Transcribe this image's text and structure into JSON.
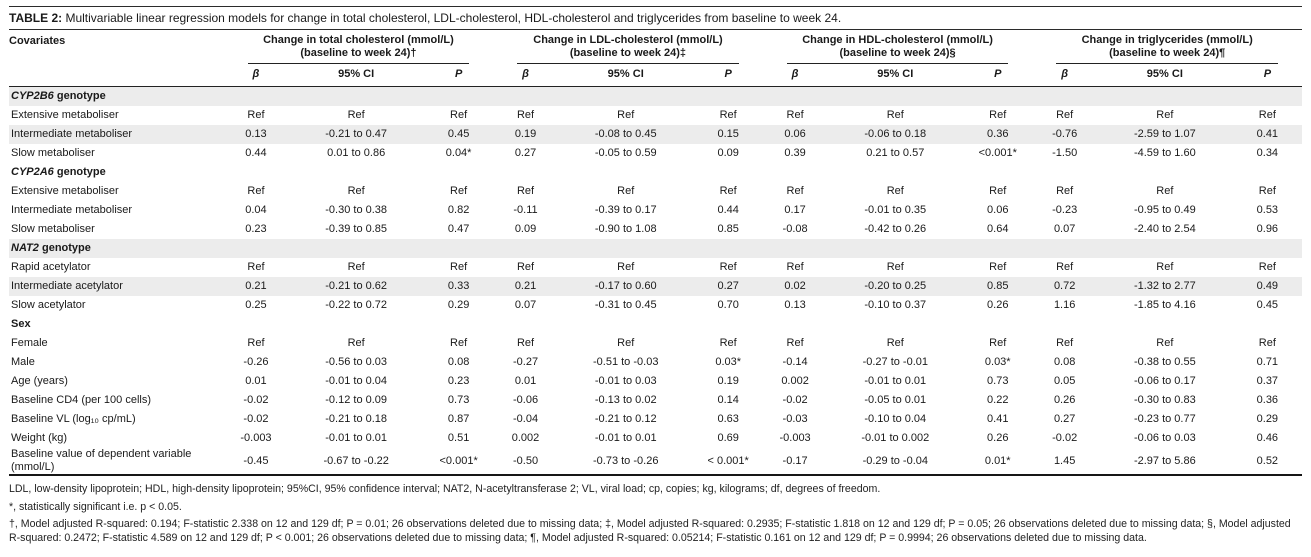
{
  "title": {
    "prefix": "TABLE 2:",
    "text": " Multivariable linear regression models for change in total cholesterol, LDL-cholesterol, HDL-cholesterol and triglycerides from baseline to week 24."
  },
  "colors": {
    "row_shade": "#ececec",
    "rule": "#222222",
    "text": "#1a1a1a"
  },
  "table": {
    "covariates_header": "Covariates",
    "groups": [
      {
        "line1": "Change in total cholesterol (mmol/L)",
        "line2": "(baseline to week 24)†"
      },
      {
        "line1": "Change in LDL-cholesterol (mmol/L)",
        "line2": "(baseline to week 24)‡"
      },
      {
        "line1": "Change in HDL-cholesterol (mmol/L)",
        "line2": "(baseline to week 24)§"
      },
      {
        "line1": "Change in triglycerides (mmol/L)",
        "line2": "(baseline to week 24)¶"
      }
    ],
    "subheaders": {
      "beta": "β",
      "ci": "95% CI",
      "p": "P"
    },
    "rows": [
      {
        "type": "section",
        "gene": "CYP2B6",
        "label": " genotype",
        "shaded": true
      },
      {
        "type": "data",
        "label": "Extensive metaboliser",
        "shaded": false,
        "values": [
          "Ref",
          "Ref",
          "Ref",
          "Ref",
          "Ref",
          "Ref",
          "Ref",
          "Ref",
          "Ref",
          "Ref",
          "Ref",
          "Ref"
        ]
      },
      {
        "type": "data",
        "label": "Intermediate metaboliser",
        "shaded": true,
        "values": [
          "0.13",
          "-0.21 to 0.47",
          "0.45",
          "0.19",
          "-0.08 to 0.45",
          "0.15",
          "0.06",
          "-0.06 to 0.18",
          "0.36",
          "-0.76",
          "-2.59 to 1.07",
          "0.41"
        ]
      },
      {
        "type": "data",
        "label": "Slow metaboliser",
        "shaded": false,
        "values": [
          "0.44",
          "0.01 to 0.86",
          "0.04*",
          "0.27",
          "-0.05 to 0.59",
          "0.09",
          "0.39",
          "0.21 to 0.57",
          "<0.001*",
          "-1.50",
          "-4.59 to 1.60",
          "0.34"
        ]
      },
      {
        "type": "section",
        "gene": "CYP2A6",
        "label": " genotype",
        "shaded": false
      },
      {
        "type": "data",
        "label": "Extensive metaboliser",
        "shaded": false,
        "values": [
          "Ref",
          "Ref",
          "Ref",
          "Ref",
          "Ref",
          "Ref",
          "Ref",
          "Ref",
          "Ref",
          "Ref",
          "Ref",
          "Ref"
        ]
      },
      {
        "type": "data",
        "label": "Intermediate metaboliser",
        "shaded": false,
        "values": [
          "0.04",
          "-0.30 to 0.38",
          "0.82",
          "-0.11",
          "-0.39 to 0.17",
          "0.44",
          "0.17",
          "-0.01 to 0.35",
          "0.06",
          "-0.23",
          "-0.95 to 0.49",
          "0.53"
        ]
      },
      {
        "type": "data",
        "label": "Slow metaboliser",
        "shaded": false,
        "values": [
          "0.23",
          "-0.39 to 0.85",
          "0.47",
          "0.09",
          "-0.90 to 1.08",
          "0.85",
          "-0.08",
          "-0.42 to 0.26",
          "0.64",
          "0.07",
          "-2.40 to 2.54",
          "0.96"
        ]
      },
      {
        "type": "section",
        "gene": "NAT2",
        "label": " genotype",
        "shaded": true
      },
      {
        "type": "data",
        "label": "Rapid acetylator",
        "shaded": false,
        "values": [
          "Ref",
          "Ref",
          "Ref",
          "Ref",
          "Ref",
          "Ref",
          "Ref",
          "Ref",
          "Ref",
          "Ref",
          "Ref",
          "Ref"
        ]
      },
      {
        "type": "data",
        "label": "Intermediate acetylator",
        "shaded": true,
        "values": [
          "0.21",
          "-0.21 to 0.62",
          "0.33",
          "0.21",
          "-0.17 to 0.60",
          "0.27",
          "0.02",
          "-0.20 to 0.25",
          "0.85",
          "0.72",
          "-1.32 to 2.77",
          "0.49"
        ]
      },
      {
        "type": "data",
        "label": "Slow acetylator",
        "shaded": false,
        "values": [
          "0.25",
          "-0.22 to 0.72",
          "0.29",
          "0.07",
          "-0.31 to 0.45",
          "0.70",
          "0.13",
          "-0.10 to 0.37",
          "0.26",
          "1.16",
          "-1.85 to 4.16",
          "0.45"
        ]
      },
      {
        "type": "section",
        "gene": "",
        "label": "Sex",
        "shaded": false
      },
      {
        "type": "data",
        "label": "Female",
        "shaded": false,
        "values": [
          "Ref",
          "Ref",
          "Ref",
          "Ref",
          "Ref",
          "Ref",
          "Ref",
          "Ref",
          "Ref",
          "Ref",
          "Ref",
          "Ref"
        ]
      },
      {
        "type": "data",
        "label": "Male",
        "shaded": false,
        "values": [
          "-0.26",
          "-0.56 to 0.03",
          "0.08",
          "-0.27",
          "-0.51 to -0.03",
          "0.03*",
          "-0.14",
          "-0.27 to -0.01",
          "0.03*",
          "0.08",
          "-0.38 to 0.55",
          "0.71"
        ]
      },
      {
        "type": "data",
        "label": "Age (years)",
        "shaded": false,
        "values": [
          "0.01",
          "-0.01 to 0.04",
          "0.23",
          "0.01",
          "-0.01 to 0.03",
          "0.19",
          "0.002",
          "-0.01 to 0.01",
          "0.73",
          "0.05",
          "-0.06 to 0.17",
          "0.37"
        ]
      },
      {
        "type": "data",
        "label": "Baseline CD4 (per 100 cells)",
        "shaded": false,
        "values": [
          "-0.02",
          "-0.12 to 0.09",
          "0.73",
          "-0.06",
          "-0.13 to 0.02",
          "0.14",
          "-0.02",
          "-0.05 to 0.01",
          "0.22",
          "0.26",
          "-0.30 to 0.83",
          "0.36"
        ]
      },
      {
        "type": "data",
        "label": "Baseline VL (log₁₀ cp/mL)",
        "shaded": false,
        "values": [
          "-0.02",
          "-0.21 to 0.18",
          "0.87",
          "-0.04",
          "-0.21 to 0.12",
          "0.63",
          "-0.03",
          "-0.10 to 0.04",
          "0.41",
          "0.27",
          "-0.23 to 0.77",
          "0.29"
        ]
      },
      {
        "type": "data",
        "label": "Weight (kg)",
        "shaded": false,
        "values": [
          "-0.003",
          "-0.01 to 0.01",
          "0.51",
          "0.002",
          "-0.01 to 0.01",
          "0.69",
          "-0.003",
          "-0.01 to 0.002",
          "0.26",
          "-0.02",
          "-0.06 to 0.03",
          "0.46"
        ]
      },
      {
        "type": "data",
        "label": "Baseline value of dependent variable (mmol/L)",
        "shaded": false,
        "values": [
          "-0.45",
          "-0.67 to -0.22",
          "<0.001*",
          "-0.50",
          "-0.73 to -0.26",
          "< 0.001*",
          "-0.17",
          "-0.29 to -0.04",
          "0.01*",
          "1.45",
          "-2.97 to 5.86",
          "0.52"
        ]
      }
    ]
  },
  "footnotes": {
    "abbreviations": "LDL, low-density lipoprotein; HDL, high-density lipoprotein; 95%CI, 95% confidence interval; NAT2, N-acetyltransferase 2; VL, viral load; cp, copies; kg, kilograms; df, degrees of freedom.",
    "significance": "*, statistically significant i.e. p < 0.05.",
    "models": "†, Model adjusted R-squared: 0.194; F-statistic 2.338 on 12 and 129 df; P = 0.01; 26 observations deleted due to missing data; ‡, Model adjusted R-squared: 0.2935; F-statistic 1.818 on 12 and 129 df; P = 0.05; 26 observations deleted due to missing data; §, Model adjusted R-squared: 0.2472; F-statistic 4.589 on 12 and 129 df; P < 0.001; 26 observations deleted due to missing data; ¶, Model adjusted R-squared: 0.05214; F-statistic 0.161 on 12 and 129 df; P = 0.9994; 26 observations deleted due to missing data."
  }
}
